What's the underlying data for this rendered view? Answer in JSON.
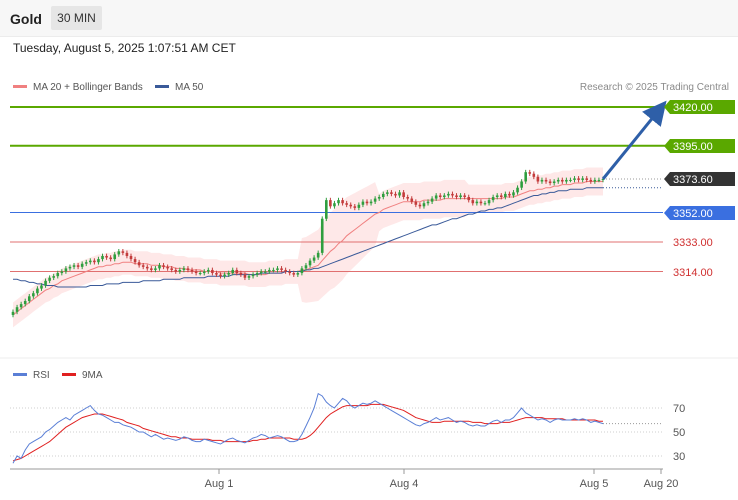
{
  "header": {
    "symbol": "Gold",
    "timeframe": "30 MIN",
    "timestamp": "Tuesday, August 5, 2025 1:07:51 AM CET"
  },
  "copyright": "Research © 2025 Trading Central",
  "colors": {
    "up": "#2e9e3e",
    "down": "#c33b3b",
    "ma20": "#f08080",
    "bollinger": "#fde0e0",
    "ma50": "#3a5a99",
    "target": "#5aa800",
    "support": "#3a6fe0",
    "resistance": "#e07070",
    "rsi": "#5a7fd6",
    "rsi_ma": "#e02020",
    "arrow": "#2e5fa8"
  },
  "chart_data": [
    {
      "type": "candlestick",
      "legend": [
        {
          "name": "MA 20 + Bollinger Bands",
          "color": "#f08080"
        },
        {
          "name": "MA 50",
          "color": "#3a5a99"
        }
      ],
      "levels": [
        {
          "label": "3420.00",
          "value": 3420.0,
          "kind": "target"
        },
        {
          "label": "3395.00",
          "value": 3395.0,
          "kind": "target"
        },
        {
          "label": "3373.60",
          "value": 3373.6,
          "kind": "last"
        },
        {
          "label": "3352.00",
          "value": 3352.0,
          "kind": "pivot"
        },
        {
          "label": "3333.00",
          "value": 3333.0,
          "kind": "support"
        },
        {
          "label": "3314.00",
          "value": 3314.0,
          "kind": "support"
        }
      ],
      "close": [
        3288,
        3291,
        3293,
        3295,
        3298,
        3300,
        3303,
        3305,
        3308,
        3310,
        3311,
        3313,
        3314,
        3316,
        3317,
        3318,
        3317,
        3319,
        3320,
        3321,
        3320,
        3322,
        3324,
        3323,
        3322,
        3325,
        3327,
        3326,
        3324,
        3322,
        3320,
        3318,
        3317,
        3316,
        3315,
        3316,
        3318,
        3317,
        3316,
        3315,
        3314,
        3315,
        3316,
        3315,
        3314,
        3313,
        3313,
        3314,
        3315,
        3313,
        3312,
        3311,
        3312,
        3313,
        3315,
        3313,
        3312,
        3310,
        3311,
        3312,
        3313,
        3314,
        3314,
        3315,
        3315,
        3316,
        3315,
        3314,
        3313,
        3312,
        3313,
        3316,
        3318,
        3321,
        3323,
        3326,
        3348,
        3360,
        3356,
        3358,
        3360,
        3358,
        3357,
        3356,
        3355,
        3357,
        3359,
        3358,
        3359,
        3361,
        3362,
        3364,
        3365,
        3364,
        3363,
        3365,
        3362,
        3361,
        3359,
        3357,
        3356,
        3358,
        3359,
        3361,
        3363,
        3362,
        3363,
        3364,
        3363,
        3362,
        3363,
        3362,
        3360,
        3358,
        3359,
        3358,
        3358,
        3360,
        3362,
        3363,
        3362,
        3364,
        3363,
        3365,
        3368,
        3372,
        3378,
        3377,
        3375,
        3372,
        3373,
        3372,
        3371,
        3372,
        3373,
        3372,
        3373,
        3373,
        3374,
        3373,
        3374,
        3373,
        3372,
        3373,
        3373,
        3373.6
      ],
      "ma20": [
        3286,
        3288,
        3290,
        3292,
        3294,
        3296,
        3298,
        3300,
        3302,
        3303,
        3305,
        3306,
        3308,
        3309,
        3310,
        3311,
        3312,
        3313,
        3314,
        3315,
        3316,
        3317,
        3317,
        3318,
        3318,
        3319,
        3319,
        3320,
        3320,
        3320,
        3319,
        3319,
        3319,
        3319,
        3318,
        3318,
        3318,
        3317,
        3317,
        3317,
        3316,
        3316,
        3316,
        3315,
        3315,
        3315,
        3315,
        3314,
        3314,
        3314,
        3314,
        3313,
        3313,
        3313,
        3313,
        3313,
        3313,
        3313,
        3312,
        3312,
        3312,
        3312,
        3312,
        3313,
        3313,
        3313,
        3313,
        3314,
        3314,
        3314,
        3314,
        3315,
        3315,
        3316,
        3317,
        3318,
        3321,
        3324,
        3327,
        3329,
        3332,
        3334,
        3337,
        3339,
        3341,
        3343,
        3345,
        3347,
        3349,
        3351,
        3352,
        3354,
        3355,
        3356,
        3357,
        3358,
        3359,
        3359,
        3359,
        3359,
        3359,
        3360,
        3360,
        3360,
        3360,
        3360,
        3361,
        3361,
        3361,
        3361,
        3361,
        3361,
        3361,
        3361,
        3361,
        3361,
        3361,
        3361,
        3361,
        3361,
        3361,
        3362,
        3362,
        3362,
        3363,
        3364,
        3365,
        3366,
        3366,
        3367,
        3367,
        3368,
        3368,
        3369,
        3369,
        3370,
        3370,
        3370,
        3371,
        3371,
        3371,
        3372,
        3372,
        3372,
        3372,
        3372
      ],
      "ma50": [
        3309,
        3309,
        3308,
        3308,
        3307,
        3307,
        3306,
        3306,
        3305,
        3305,
        3305,
        3304,
        3304,
        3304,
        3304,
        3304,
        3304,
        3304,
        3304,
        3305,
        3305,
        3305,
        3305,
        3306,
        3306,
        3306,
        3306,
        3307,
        3307,
        3307,
        3307,
        3307,
        3308,
        3308,
        3308,
        3308,
        3308,
        3309,
        3309,
        3309,
        3309,
        3309,
        3310,
        3310,
        3310,
        3310,
        3310,
        3310,
        3311,
        3311,
        3311,
        3311,
        3311,
        3311,
        3312,
        3312,
        3312,
        3312,
        3312,
        3312,
        3312,
        3313,
        3313,
        3313,
        3313,
        3313,
        3313,
        3314,
        3314,
        3314,
        3314,
        3314,
        3315,
        3315,
        3316,
        3316,
        3317,
        3318,
        3319,
        3320,
        3321,
        3322,
        3323,
        3324,
        3325,
        3326,
        3327,
        3328,
        3329,
        3330,
        3331,
        3332,
        3333,
        3334,
        3335,
        3336,
        3337,
        3338,
        3339,
        3340,
        3341,
        3342,
        3343,
        3344,
        3344,
        3345,
        3346,
        3347,
        3348,
        3348,
        3349,
        3350,
        3351,
        3351,
        3352,
        3353,
        3353,
        3354,
        3354,
        3355,
        3355,
        3356,
        3357,
        3358,
        3359,
        3360,
        3361,
        3362,
        3363,
        3363,
        3364,
        3364,
        3365,
        3365,
        3366,
        3366,
        3366,
        3367,
        3367,
        3367,
        3367,
        3368,
        3368,
        3368,
        3368,
        3368
      ]
    },
    {
      "type": "line",
      "legend": [
        {
          "name": "RSI",
          "color": "#5a7fd6"
        },
        {
          "name": "9MA",
          "color": "#e02020"
        }
      ],
      "y_ticks": [
        70,
        50,
        30
      ],
      "rsi": [
        24,
        30,
        28,
        35,
        40,
        42,
        44,
        46,
        50,
        52,
        55,
        58,
        60,
        62,
        60,
        64,
        66,
        68,
        70,
        72,
        68,
        65,
        64,
        62,
        60,
        58,
        58,
        56,
        55,
        54,
        52,
        50,
        50,
        48,
        46,
        48,
        46,
        44,
        45,
        44,
        43,
        44,
        46,
        45,
        43,
        42,
        42,
        44,
        43,
        42,
        41,
        40,
        42,
        44,
        45,
        43,
        42,
        41,
        43,
        45,
        46,
        48,
        47,
        45,
        46,
        47,
        46,
        44,
        42,
        42,
        43,
        48,
        55,
        62,
        70,
        82,
        80,
        75,
        72,
        70,
        74,
        78,
        76,
        72,
        70,
        72,
        74,
        73,
        74,
        76,
        74,
        72,
        70,
        68,
        66,
        64,
        62,
        60,
        58,
        56,
        55,
        57,
        58,
        60,
        62,
        60,
        61,
        62,
        60,
        58,
        59,
        58,
        56,
        55,
        56,
        55,
        55,
        57,
        59,
        60,
        58,
        60,
        60,
        62,
        66,
        70,
        66,
        64,
        62,
        60,
        61,
        60,
        58,
        60,
        61,
        60,
        60,
        60,
        61,
        60,
        61,
        60,
        58,
        59,
        58,
        57
      ],
      "ma9": [
        26,
        27,
        28,
        30,
        32,
        34,
        36,
        38,
        40,
        42,
        45,
        48,
        51,
        54,
        56,
        58,
        60,
        62,
        63,
        64,
        65,
        65,
        65,
        64,
        63,
        62,
        61,
        60,
        58,
        57,
        56,
        55,
        53,
        52,
        51,
        50,
        49,
        48,
        47,
        46,
        46,
        45,
        45,
        45,
        44,
        44,
        44,
        44,
        44,
        43,
        43,
        43,
        42,
        42,
        42,
        42,
        42,
        42,
        42,
        43,
        43,
        44,
        44,
        45,
        45,
        45,
        45,
        45,
        45,
        44,
        44,
        44,
        45,
        47,
        50,
        54,
        58,
        62,
        65,
        67,
        69,
        71,
        72,
        72,
        72,
        72,
        72,
        72,
        73,
        73,
        73,
        73,
        72,
        71,
        70,
        69,
        68,
        66,
        64,
        62,
        61,
        60,
        59,
        58,
        58,
        58,
        59,
        59,
        59,
        59,
        59,
        59,
        59,
        58,
        58,
        58,
        57,
        57,
        57,
        57,
        58,
        58,
        58,
        59,
        60,
        61,
        62,
        62,
        62,
        62,
        62,
        61,
        61,
        61,
        61,
        61,
        60,
        60,
        60,
        60,
        60,
        60,
        60,
        60,
        59,
        59
      ],
      "x_ticks": [
        "Aug 1",
        "Aug 4",
        "Aug 5",
        "Aug 20"
      ]
    }
  ]
}
